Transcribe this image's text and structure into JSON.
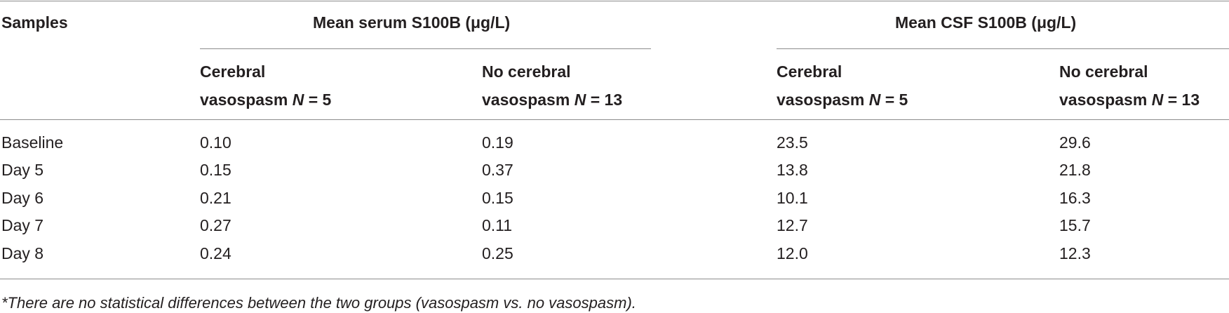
{
  "table": {
    "stub_header": "Samples",
    "group_headers": {
      "serum": "Mean serum S100B (μg/L)",
      "csf": "Mean CSF S100B (μg/L)"
    },
    "sub_headers": [
      {
        "line1": "Cerebral",
        "line2_pre": "vasospasm ",
        "n_var": "N",
        "line2_post": " = 5"
      },
      {
        "line1": "No cerebral",
        "line2_pre": "vasospasm ",
        "n_var": "N",
        "line2_post": " = 13"
      },
      {
        "line1": "Cerebral",
        "line2_pre": "vasospasm ",
        "n_var": "N",
        "line2_post": " = 5"
      },
      {
        "line1": "No cerebral",
        "line2_pre": "vasospasm ",
        "n_var": "N",
        "line2_post": " = 13"
      }
    ],
    "rows": [
      {
        "label": "Baseline",
        "values": [
          "0.10",
          "0.19",
          "23.5",
          "29.6"
        ]
      },
      {
        "label": "Day 5",
        "values": [
          "0.15",
          "0.37",
          "13.8",
          "21.8"
        ]
      },
      {
        "label": "Day 6",
        "values": [
          "0.21",
          "0.15",
          "10.1",
          "16.3"
        ]
      },
      {
        "label": "Day 7",
        "values": [
          "0.27",
          "0.11",
          "12.7",
          "15.7"
        ]
      },
      {
        "label": "Day 8",
        "values": [
          "0.24",
          "0.25",
          "12.0",
          "12.3"
        ]
      }
    ],
    "footnote": "*There are no statistical differences between the two groups (vasospasm vs. no vasospasm)."
  }
}
